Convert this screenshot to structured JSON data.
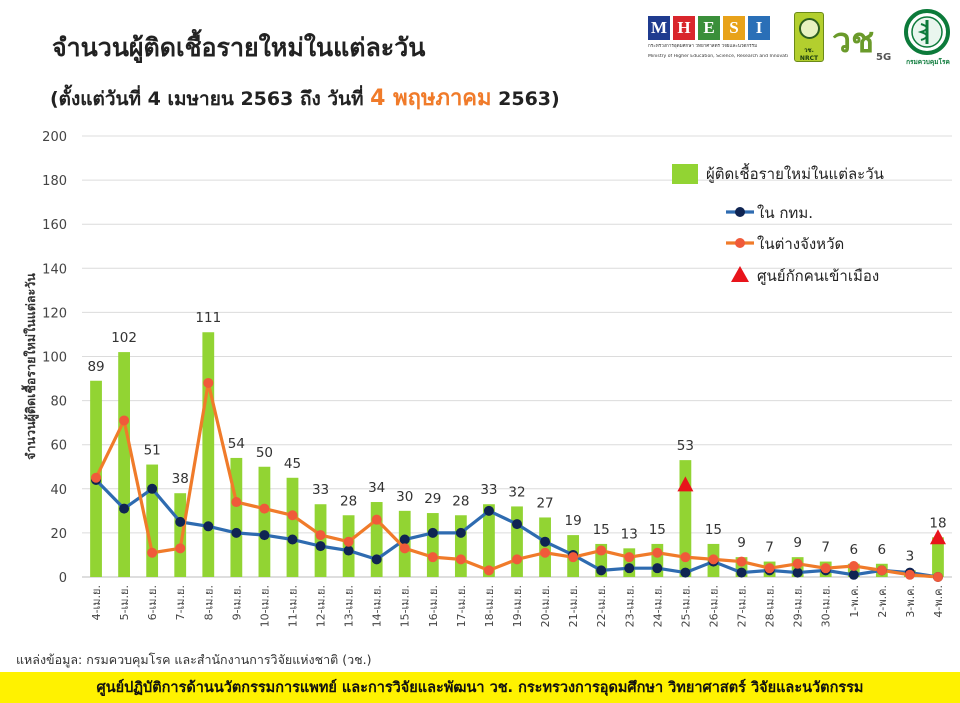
{
  "header": {
    "title": "จำนวนผู้ติดเชื้อรายใหม่ในแต่ละวัน",
    "subtitle_pre": "(ตั้งแต่วันที่ 4 เมษายน 2563 ถึง วันที่ ",
    "subtitle_accent": "4 พฤษภาคม",
    "subtitle_post": " 2563)",
    "accent_color": "#f07b2a"
  },
  "logos": {
    "mhesi_letters": [
      "M",
      "H",
      "E",
      "S",
      "I"
    ],
    "mhesi_colors": [
      "#1f3b8f",
      "#d9262c",
      "#3a8f3a",
      "#e8a21a",
      "#2a6fb7"
    ],
    "mhesi_line1": "กระทรวงการอุดมศึกษา วิทยาศาสตร์ วิจัยและนวัตกรรม",
    "mhesi_line2": "Ministry of Higher Education, Science, Research and Innovation",
    "nrct_label": "วช. NRCT",
    "vch_mark": "วช",
    "vch_suffix": "5G",
    "dept_label": "กรมควบคุมโรค"
  },
  "chart_data": {
    "type": "bar",
    "ylabel": "จำนวนผู้ติดเชื้อรายใหม่ในแต่ละวัน",
    "ylim": [
      0,
      200
    ],
    "yticks": [
      0,
      20,
      40,
      60,
      80,
      100,
      120,
      140,
      160,
      180,
      200
    ],
    "grid": true,
    "legend_position": "top-right",
    "categories": [
      "4-เม.ย.",
      "5-เม.ย.",
      "6-เม.ย.",
      "7-เม.ย.",
      "8-เม.ย.",
      "9-เม.ย.",
      "10-เม.ย.",
      "11-เม.ย.",
      "12-เม.ย.",
      "13-เม.ย.",
      "14-เม.ย.",
      "15-เม.ย.",
      "16-เม.ย.",
      "17-เม.ย.",
      "18-เม.ย.",
      "19-เม.ย.",
      "20-เม.ย.",
      "21-เม.ย.",
      "22-เม.ย.",
      "23-เม.ย.",
      "24-เม.ย.",
      "25-เม.ย.",
      "26-เม.ย.",
      "27-เม.ย.",
      "28-เม.ย.",
      "29-เม.ย.",
      "30-เม.ย.",
      "1-พ.ค.",
      "2-พ.ค.",
      "3-พ.ค.",
      "4-พ.ค."
    ],
    "series": [
      {
        "name": "ผู้ติดเชื้อรายใหม่ในแต่ละวัน",
        "kind": "bar",
        "color": "#92d433",
        "values": [
          89,
          102,
          51,
          38,
          111,
          54,
          50,
          45,
          33,
          28,
          34,
          30,
          29,
          28,
          33,
          32,
          27,
          19,
          15,
          13,
          15,
          53,
          15,
          9,
          7,
          9,
          7,
          6,
          6,
          3,
          18
        ]
      },
      {
        "name": "ใน กทม.",
        "kind": "line",
        "color": "#2e6bb0",
        "marker_color": "#0f2452",
        "values": [
          44,
          31,
          40,
          25,
          23,
          20,
          19,
          17,
          14,
          12,
          8,
          17,
          20,
          20,
          30,
          24,
          16,
          10,
          3,
          4,
          4,
          2,
          7,
          2,
          3,
          2,
          3,
          1,
          3,
          2,
          0
        ]
      },
      {
        "name": "ในต่างจังหวัด",
        "kind": "line",
        "color": "#f07b2a",
        "marker_color": "#f05a3a",
        "values": [
          45,
          71,
          11,
          13,
          88,
          34,
          31,
          28,
          19,
          16,
          26,
          13,
          9,
          8,
          3,
          8,
          11,
          9,
          12,
          9,
          11,
          9,
          8,
          7,
          4,
          6,
          4,
          5,
          3,
          1,
          0
        ]
      },
      {
        "name": "ศูนย์กักคนเข้าเมือง",
        "kind": "marker",
        "color": "#e8141b",
        "points": [
          {
            "category": "25-เม.ย.",
            "value": 42
          },
          {
            "category": "4-พ.ค.",
            "value": 18
          }
        ]
      }
    ]
  },
  "source": "แหล่งข้อมูล: กรมควบคุมโรค และสำนักงานการวิจัยแห่งชาติ (วช.)",
  "footer": "ศูนย์ปฏิบัติการด้านนวัตกรรมการแพทย์ และการวิจัยและพัฒนา   วช.   กระทรวงการอุดมศึกษา วิทยาศาสตร์ วิจัยและนวัตกรรม"
}
